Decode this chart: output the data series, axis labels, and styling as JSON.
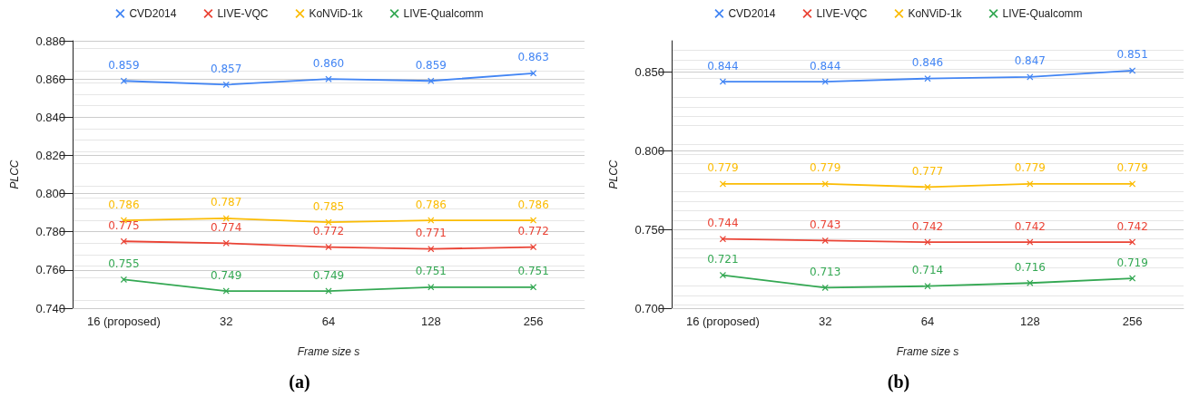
{
  "chart_data": [
    {
      "type": "line",
      "title": "(a)",
      "xlabel": "Frame size s",
      "ylabel": "PLCC",
      "categories": [
        "16 (proposed)",
        "32",
        "64",
        "128",
        "256"
      ],
      "ylim": [
        0.74,
        0.88
      ],
      "yticks": [
        {
          "value": 0.74,
          "label": "0.740"
        },
        {
          "value": 0.76,
          "label": "0.760"
        },
        {
          "value": 0.78,
          "label": "0.780"
        },
        {
          "value": 0.8,
          "label": "0.800"
        },
        {
          "value": 0.82,
          "label": "0.820"
        },
        {
          "value": 0.84,
          "label": "0.840"
        },
        {
          "value": 0.86,
          "label": "0.860"
        },
        {
          "value": 0.88,
          "label": "0.880"
        }
      ],
      "grid": "y",
      "legend": "top",
      "marker": "cross",
      "line_style": "solid",
      "series": [
        {
          "name": "CVD2014",
          "color": "#4285f4",
          "values": [
            0.859,
            0.857,
            0.86,
            0.859,
            0.863
          ],
          "value_labels": [
            "0.859",
            "0.857",
            "0.860",
            "0.859",
            "0.863"
          ]
        },
        {
          "name": "LIVE-VQC",
          "color": "#ea4335",
          "values": [
            0.775,
            0.774,
            0.772,
            0.771,
            0.772
          ],
          "value_labels": [
            "0.775",
            "0.774",
            "0.772",
            "0.771",
            "0.772"
          ]
        },
        {
          "name": "KoNViD-1k",
          "color": "#fbbc04",
          "values": [
            0.786,
            0.787,
            0.785,
            0.786,
            0.786
          ],
          "value_labels": [
            "0.786",
            "0.787",
            "0.785",
            "0.786",
            "0.786"
          ]
        },
        {
          "name": "LIVE-Qualcomm",
          "color": "#34a853",
          "values": [
            0.755,
            0.749,
            0.749,
            0.751,
            0.751
          ],
          "value_labels": [
            "0.755",
            "0.749",
            "0.749",
            "0.751",
            "0.751"
          ]
        }
      ]
    },
    {
      "type": "line",
      "title": "(b)",
      "xlabel": "Frame size s",
      "ylabel": "PLCC",
      "categories": [
        "16 (proposed)",
        "32",
        "64",
        "128",
        "256"
      ],
      "ylim": [
        0.7,
        0.87
      ],
      "yticks": [
        {
          "value": 0.7,
          "label": "0.700"
        },
        {
          "value": 0.75,
          "label": "0.750"
        },
        {
          "value": 0.8,
          "label": "0.800"
        },
        {
          "value": 0.85,
          "label": "0.850"
        }
      ],
      "grid": "y",
      "legend": "top",
      "marker": "cross",
      "line_style": "solid",
      "series": [
        {
          "name": "CVD2014",
          "color": "#4285f4",
          "values": [
            0.844,
            0.844,
            0.846,
            0.847,
            0.851
          ],
          "value_labels": [
            "0.844",
            "0.844",
            "0.846",
            "0.847",
            "0.851"
          ]
        },
        {
          "name": "LIVE-VQC",
          "color": "#ea4335",
          "values": [
            0.744,
            0.743,
            0.742,
            0.742,
            0.742
          ],
          "value_labels": [
            "0.744",
            "0.743",
            "0.742",
            "0.742",
            "0.742"
          ]
        },
        {
          "name": "KoNViD-1k",
          "color": "#fbbc04",
          "values": [
            0.779,
            0.779,
            0.777,
            0.779,
            0.779
          ],
          "value_labels": [
            "0.779",
            "0.779",
            "0.777",
            "0.779",
            "0.779"
          ]
        },
        {
          "name": "LIVE-Qualcomm",
          "color": "#34a853",
          "values": [
            0.721,
            0.713,
            0.714,
            0.716,
            0.719
          ],
          "value_labels": [
            "0.721",
            "0.713",
            "0.714",
            "0.716",
            "0.719"
          ]
        }
      ]
    }
  ]
}
